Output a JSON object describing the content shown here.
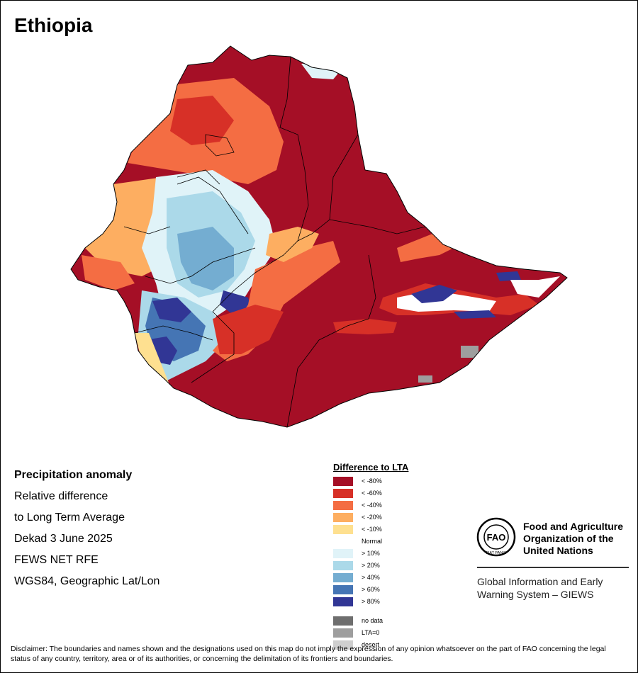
{
  "title": "Ethiopia",
  "info": {
    "heading": "Precipitation anomaly",
    "line1": "Relative difference",
    "line2": "to Long Term Average",
    "line3": "Dekad 3 June 2025",
    "line4": "FEWS NET RFE",
    "line5": "WGS84, Geographic Lat/Lon"
  },
  "legend": {
    "title": "Difference to LTA",
    "items": [
      {
        "label": "< -80%",
        "color": "#a50f26"
      },
      {
        "label": "< -60%",
        "color": "#d73027"
      },
      {
        "label": "< -40%",
        "color": "#f46d43"
      },
      {
        "label": "< -20%",
        "color": "#fdae61"
      },
      {
        "label": "< -10%",
        "color": "#fee090"
      }
    ],
    "normal": "Normal",
    "wet_items": [
      {
        "label": "> 10%",
        "color": "#e0f3f8"
      },
      {
        "label": "> 20%",
        "color": "#abd9e9"
      },
      {
        "label": "> 40%",
        "color": "#74add1"
      },
      {
        "label": "> 60%",
        "color": "#4575b4"
      },
      {
        "label": "> 80%",
        "color": "#313695"
      }
    ],
    "extra_items": [
      {
        "label": "no data",
        "color": "#6e6e6e"
      },
      {
        "label": "LTA=0",
        "color": "#9e9e9e"
      },
      {
        "label": "desert",
        "color": "#cfcfcf"
      }
    ]
  },
  "fao": {
    "name_line1": "Food and Agriculture",
    "name_line2": "Organization of the",
    "name_line3": "United Nations",
    "giews_line1": "Global Information and Early",
    "giews_line2": "Warning System – GIEWS",
    "logo_text": "FAO",
    "logo_motto": "FIAT PANIS"
  },
  "disclaimer": "Disclaimer: The boundaries and names shown and the designations used on this map do not imply the expression of any opinion whatsoever on the part of FAO concerning the legal status of any country, territory, area or of its authorities, or concerning the delimitation of its frontiers and boundaries."
}
